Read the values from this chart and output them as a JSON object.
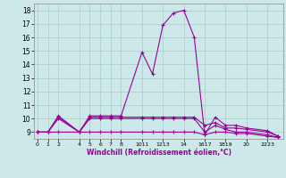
{
  "xlabel": "Windchill (Refroidissement éolien,°C)",
  "background_color": "#cce8e8",
  "grid_color": "#aacccc",
  "line_color": "#990099",
  "series": [
    {
      "x": [
        0,
        1,
        2,
        4,
        5,
        6,
        7,
        8,
        10,
        11,
        12,
        13,
        14,
        15,
        16,
        17,
        18,
        19,
        20,
        22,
        23
      ],
      "y": [
        9,
        9,
        10.2,
        9.0,
        10.2,
        10.2,
        10.2,
        10.2,
        14.9,
        13.3,
        16.9,
        17.8,
        18.0,
        16.0,
        8.8,
        10.1,
        9.5,
        9.5,
        9.3,
        9.1,
        8.7
      ]
    },
    {
      "x": [
        0,
        1,
        2,
        4,
        5,
        6,
        7,
        8,
        10,
        11,
        12,
        13,
        14,
        15,
        16,
        17,
        18,
        19,
        20,
        22,
        23
      ],
      "y": [
        9,
        9,
        10.1,
        9.0,
        10.1,
        10.1,
        10.1,
        10.1,
        10.1,
        10.1,
        10.1,
        10.1,
        10.1,
        10.1,
        9.5,
        9.7,
        9.3,
        9.3,
        9.2,
        9.0,
        8.7
      ]
    },
    {
      "x": [
        0,
        1,
        2,
        4,
        5,
        6,
        7,
        8,
        10,
        11,
        12,
        13,
        14,
        15,
        16,
        17,
        18,
        19,
        20,
        22,
        23
      ],
      "y": [
        9,
        9,
        10.0,
        9.0,
        10.0,
        10.0,
        10.0,
        10.0,
        10.0,
        10.0,
        10.0,
        10.0,
        10.0,
        10.0,
        9.0,
        9.5,
        9.2,
        9.0,
        9.0,
        8.8,
        8.6
      ]
    },
    {
      "x": [
        0,
        1,
        2,
        4,
        5,
        6,
        7,
        8,
        10,
        11,
        12,
        13,
        14,
        15,
        16,
        17,
        18,
        19,
        20,
        22,
        23
      ],
      "y": [
        9.0,
        9.0,
        9.0,
        9.0,
        9.0,
        9.0,
        9.0,
        9.0,
        9.0,
        9.0,
        9.0,
        9.0,
        9.0,
        9.0,
        8.8,
        9.0,
        9.0,
        8.9,
        8.9,
        8.7,
        8.6
      ]
    }
  ],
  "xtick_labels": [
    "0",
    "1",
    "2",
    "4",
    "5",
    "6",
    "7",
    "8",
    "10",
    "11",
    "12",
    "13",
    "14",
    "16",
    "17",
    "18",
    "19",
    "20",
    "22",
    "23"
  ],
  "xtick_grouped_positions": [
    0,
    1,
    2,
    4,
    5,
    6,
    7,
    8,
    10,
    12,
    14,
    16,
    18,
    20,
    22
  ],
  "xtick_grouped_labels": [
    "0",
    "1",
    "2",
    "4",
    "5",
    "6",
    "7",
    "8",
    "1011",
    "1213",
    "14",
    "1617",
    "1819",
    "20",
    "2223"
  ],
  "ylim": [
    8.5,
    18.5
  ],
  "yticks": [
    9,
    10,
    11,
    12,
    13,
    14,
    15,
    16,
    17,
    18
  ],
  "xlim": [
    -0.3,
    23.5
  ]
}
